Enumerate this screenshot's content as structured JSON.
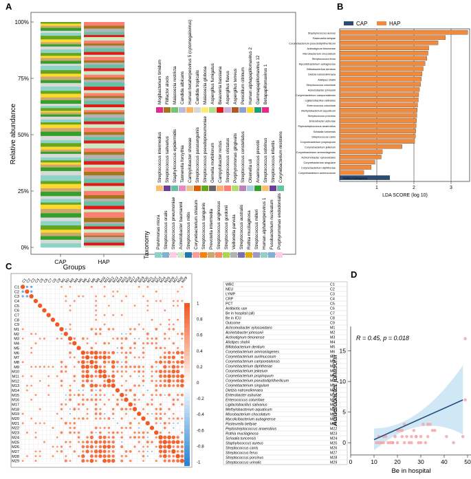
{
  "panels": {
    "a": "A",
    "b": "B",
    "c": "C",
    "d": "D"
  },
  "chart_data": [
    {
      "id": "A",
      "type": "stacked-bar",
      "title": "",
      "xlabel": "Groups",
      "ylabel": "Relative abundance",
      "categories": [
        "CAP",
        "HAP"
      ],
      "ylim": [
        0,
        100
      ],
      "yticks": [
        "0%",
        "25%",
        "50%",
        "75%",
        "100%"
      ],
      "legend_title": "Taxonomy",
      "segments_cap": [
        6,
        5,
        5,
        5,
        4,
        6,
        6,
        5,
        6,
        6,
        6,
        3,
        5,
        4,
        6,
        5,
        6,
        4,
        8,
        6,
        5,
        4,
        3,
        3,
        4,
        5,
        3,
        3,
        4,
        5,
        4,
        6,
        6,
        5,
        5,
        3,
        4,
        4,
        3,
        3,
        2,
        4,
        3,
        3,
        5,
        4,
        5,
        4,
        6,
        5,
        4,
        5,
        4,
        5,
        6,
        3,
        4,
        4,
        3,
        4,
        5,
        4,
        3,
        3,
        4,
        5,
        4,
        3,
        4,
        3,
        3,
        2
      ],
      "segments_hap": [
        3,
        4,
        3,
        5,
        2,
        4,
        5,
        4,
        3,
        3,
        6,
        8,
        4,
        5,
        6,
        4,
        5,
        6,
        7,
        4,
        6,
        5,
        5,
        6,
        4,
        5,
        3,
        6,
        4,
        5,
        7,
        4,
        5,
        3,
        4,
        6,
        5,
        4,
        5,
        5,
        3,
        3,
        4,
        4,
        5,
        4,
        3,
        4,
        4,
        5,
        6,
        4,
        3,
        4,
        5,
        4,
        5,
        3,
        3,
        5,
        3,
        4,
        5,
        4,
        3,
        4,
        5,
        3,
        4,
        5,
        4,
        5
      ],
      "palette": [
        "#8dd3c7",
        "#bebada",
        "#fb8072",
        "#80b1d3",
        "#fdb462",
        "#b3de69",
        "#fccde5",
        "#d9d9d9",
        "#bc80bd",
        "#ccebc5",
        "#ffed6f",
        "#a6cee3",
        "#1f78b4",
        "#b2df8a",
        "#33a02c",
        "#fb9a99",
        "#e31a1c",
        "#fdbf6f",
        "#ff7f00",
        "#cab2d6",
        "#6a3d9a",
        "#c9a96e",
        "#b15928",
        "#66c2a5",
        "#fc8d62",
        "#8da0cb",
        "#e78ac3",
        "#a6d854",
        "#ffd92f",
        "#e5c494",
        "#b3b3b3",
        "#1b9e77",
        "#d95f02",
        "#7570b3",
        "#e7298a",
        "#66a61e",
        "#e6ab02",
        "#a6761d",
        "#666666",
        "#9e9ac8",
        "#74c476",
        "#fdae6b"
      ],
      "legend_columns": [
        [
          "Parvimonas micra",
          "Streptococcus oralis",
          "Streptococcus pneumoniae",
          "Acinetobacter baumannii",
          "Streptococcus mitis",
          "Corynebacterium striatum",
          "Streptococcus sanguinis",
          "Prevotella intermedia",
          "Streptococcus anginosus",
          "Streptococcus gordonii",
          "Veillonella parvula",
          "Streptococcus australis",
          "Rothia mucilaginosa",
          "Streptococcus milleri",
          "Human alphaherpesvirus 1",
          "Fusobacterium nucleatum",
          "Porphyromonas endodontalis"
        ],
        [
          "Streptococcus intermedius",
          "Streptococcus salivarius",
          "Staphylococcus epidermidis",
          "Tannerella forsythia",
          "Campylobacter showae",
          "Streptococcus parasanguinis",
          "Streptococcus pseudopneumoniae",
          "Gemella morbillorum",
          "Campylobacter rectus",
          "Streptococcus cristatus",
          "Porphyromonas gingivalis",
          "Streptococcus constellatus",
          "Olsenella uli",
          "Anaerococcus prevotii",
          "Streptococcus sobrinus",
          "Streptococcus infantis",
          "Corynebacterium resistens"
        ],
        [
          "Mogibacterium timidum",
          "Filifactor alocis",
          "Malassezia restricta",
          "Candida albicans",
          "Human betaherpesvirus 5 (cytomegalovirus)",
          "Candida tropicalis",
          "Malassezia globosa",
          "Aspergillus fumigatus",
          "Beauveria bassiana",
          "Aspergillus flavus",
          "Aspergillus terreus",
          "Penicillium citrinum",
          "Human alphapapillomavirus 2",
          "Gammapapillomavirus 12",
          "Betapapillomavirus 1"
        ]
      ]
    },
    {
      "id": "B",
      "type": "bar",
      "orientation": "horizontal",
      "xlabel": "LDA SCORE (log 10)",
      "xlim": [
        0,
        3.5
      ],
      "xticks": [
        "1",
        "2",
        "3"
      ],
      "series": [
        {
          "name": "CAP",
          "color": "#2b4b73"
        },
        {
          "name": "HAP",
          "color": "#f08a3c"
        }
      ],
      "categories": [
        "Staphylococcus aureus",
        "Pasteurella bettyae",
        "Corynebacterium pseudodiphtheriticum",
        "Actinotignum timonense",
        "Microbacterium chocolatum",
        "Streptococcus ferus",
        "Mycolicibacterium aubagnense",
        "Bifidobacterium dentium",
        "Dietzia natronolimnaea",
        "Alistipes shahii",
        "Streptococcus columbae",
        "Acinetobacter johnsonii",
        "Corynebacterium camporealensis",
        "Ligilactobacillus salivarius",
        "Enterococcus columbae",
        "Methylobacterium aquaticum",
        "Streptococcus porcinus",
        "Enterobacter asburiae",
        "Peptostreptococcus anaerobius",
        "Schaalia turicensis",
        "Streptococcus canis",
        "Corynebacterium propinquum",
        "Corynebacterium jeikeium",
        "Corynebacterium ammoniagenes",
        "Achromobacter xylosoxidans",
        "Corynebacterium singulare",
        "Corynebacterium diphtheriae",
        "Corynebacterium aurimucosum",
        "Rothia mucilaginosa"
      ],
      "values": [
        3.45,
        2.85,
        2.65,
        2.4,
        2.38,
        2.35,
        2.3,
        2.25,
        2.22,
        2.2,
        2.18,
        2.15,
        2.13,
        2.12,
        2.1,
        2.09,
        2.08,
        2.07,
        2.06,
        2.05,
        2.04,
        2.02,
        1.68,
        1.15,
        1.12,
        0.95,
        0.85,
        0.65,
        1.35
      ],
      "groups": [
        "HAP",
        "HAP",
        "HAP",
        "HAP",
        "HAP",
        "HAP",
        "HAP",
        "HAP",
        "HAP",
        "HAP",
        "HAP",
        "HAP",
        "HAP",
        "HAP",
        "HAP",
        "HAP",
        "HAP",
        "HAP",
        "HAP",
        "HAP",
        "HAP",
        "HAP",
        "HAP",
        "HAP",
        "HAP",
        "HAP",
        "HAP",
        "HAP",
        "CAP"
      ]
    },
    {
      "id": "C",
      "type": "heatmap",
      "labels": [
        "C1",
        "C2",
        "C3",
        "C4",
        "C5",
        "C6",
        "C7",
        "C8",
        "C9",
        "M1",
        "M2",
        "M3",
        "M4",
        "M5",
        "M6",
        "M7",
        "M8",
        "M9",
        "M10",
        "M11",
        "M12",
        "M13",
        "M14",
        "M15",
        "M16",
        "M17",
        "M18",
        "M19",
        "M20",
        "M21",
        "M22",
        "M23",
        "M24",
        "M25",
        "M26",
        "M27",
        "M28",
        "M29"
      ],
      "colorbar_ticks": [
        "1",
        "0.8",
        "0.6",
        "0.4",
        "0.2",
        "0",
        "-0.2",
        "-0.4",
        "-0.6",
        "-0.8",
        "-1"
      ],
      "colors": {
        "positive": "#f05a22",
        "negative": "#2a84d2"
      },
      "key": [
        [
          "WBC",
          "C1"
        ],
        [
          "NEU",
          "C2"
        ],
        [
          "LYMP",
          "C3"
        ],
        [
          "CRP",
          "C4"
        ],
        [
          "PCT",
          "C5"
        ],
        [
          "Antibiotic use",
          "C6"
        ],
        [
          "Be in hospital (all)",
          "C7"
        ],
        [
          "Be in ICU",
          "C8"
        ],
        [
          "Outcome",
          "C9"
        ],
        [
          "Achromobacter xylosoxidans",
          "M1"
        ],
        [
          "Acinetobacter johnsonii",
          "M2"
        ],
        [
          "Actinotignum timonense",
          "M3"
        ],
        [
          "Alistipes shahii",
          "M4"
        ],
        [
          "Bifidobacterium dentium",
          "M5"
        ],
        [
          "Corynebacterium ammoniagenes",
          "M6"
        ],
        [
          "Corynebacterium aurimucosum",
          "M7"
        ],
        [
          "Corynebacterium camporealensis",
          "M8"
        ],
        [
          "Corynebacterium diphtheriae",
          "M9"
        ],
        [
          "Corynebacterium jeikeium",
          "M10"
        ],
        [
          "Corynebacterium propinquum",
          "M11"
        ],
        [
          "Corynebacterium pseudodiphtheriticum",
          "M12"
        ],
        [
          "Corynebacterium singulare",
          "M13"
        ],
        [
          "Dietzia natronolimnaea",
          "M14"
        ],
        [
          "Enterobacter asburiae",
          "M15"
        ],
        [
          "Enterococcus columbae",
          "M16"
        ],
        [
          "Ligilactobacillus salivarius",
          "M17"
        ],
        [
          "Methylobacterium aquaticum",
          "M18"
        ],
        [
          "Microbacterium chocolatum",
          "M19"
        ],
        [
          "Mycolicibacterium aubagnense",
          "M20"
        ],
        [
          "Pasteurella bettyae",
          "M21"
        ],
        [
          "Peptostreptococcus anaerobius",
          "M22"
        ],
        [
          "Rothia mucilaginosa",
          "M23"
        ],
        [
          "Schaalia turicensis",
          "M24"
        ],
        [
          "Staphylococcus aureus",
          "M25"
        ],
        [
          "Streptococcus canis",
          "M26"
        ],
        [
          "Streptococcus ferus",
          "M27"
        ],
        [
          "Streptococcus porcinus",
          "M28"
        ],
        [
          "Streptococcus urinalis",
          "M29"
        ]
      ]
    },
    {
      "id": "D",
      "type": "scatter",
      "xlabel": "Be in hospital",
      "ylabel": "Acinetobacter johnsonii",
      "annotation": "R = 0.45, p = 0.018",
      "xlim": [
        0,
        50
      ],
      "ylim": [
        -2,
        19
      ],
      "xticks": [
        "0",
        "10",
        "20",
        "30",
        "40",
        "50"
      ],
      "yticks": [
        "0",
        "5",
        "10",
        "15"
      ],
      "x": [
        11,
        12,
        13,
        14,
        15,
        16,
        17,
        18,
        19,
        20,
        21,
        22,
        23,
        24,
        25,
        26,
        27,
        28,
        29,
        30,
        31,
        32,
        33,
        34,
        35,
        12,
        14,
        18,
        22,
        26,
        30,
        33,
        36,
        41,
        44,
        48,
        49,
        49,
        23,
        20,
        28
      ],
      "y": [
        0,
        0,
        0,
        0,
        1,
        0,
        0,
        0,
        1,
        0,
        2,
        1,
        0,
        1,
        0,
        0,
        2,
        1,
        0,
        1,
        3,
        0,
        1,
        3,
        2,
        1,
        1,
        0,
        2,
        1,
        0,
        3,
        2,
        1,
        0,
        1,
        7,
        17,
        3,
        2,
        1
      ],
      "fit": {
        "x": [
          10,
          48
        ],
        "y": [
          0.5,
          7.0
        ]
      },
      "point_color": "#f4a1a8",
      "line_color": "#244c7c",
      "band_color": "#a9d6ee"
    }
  ]
}
